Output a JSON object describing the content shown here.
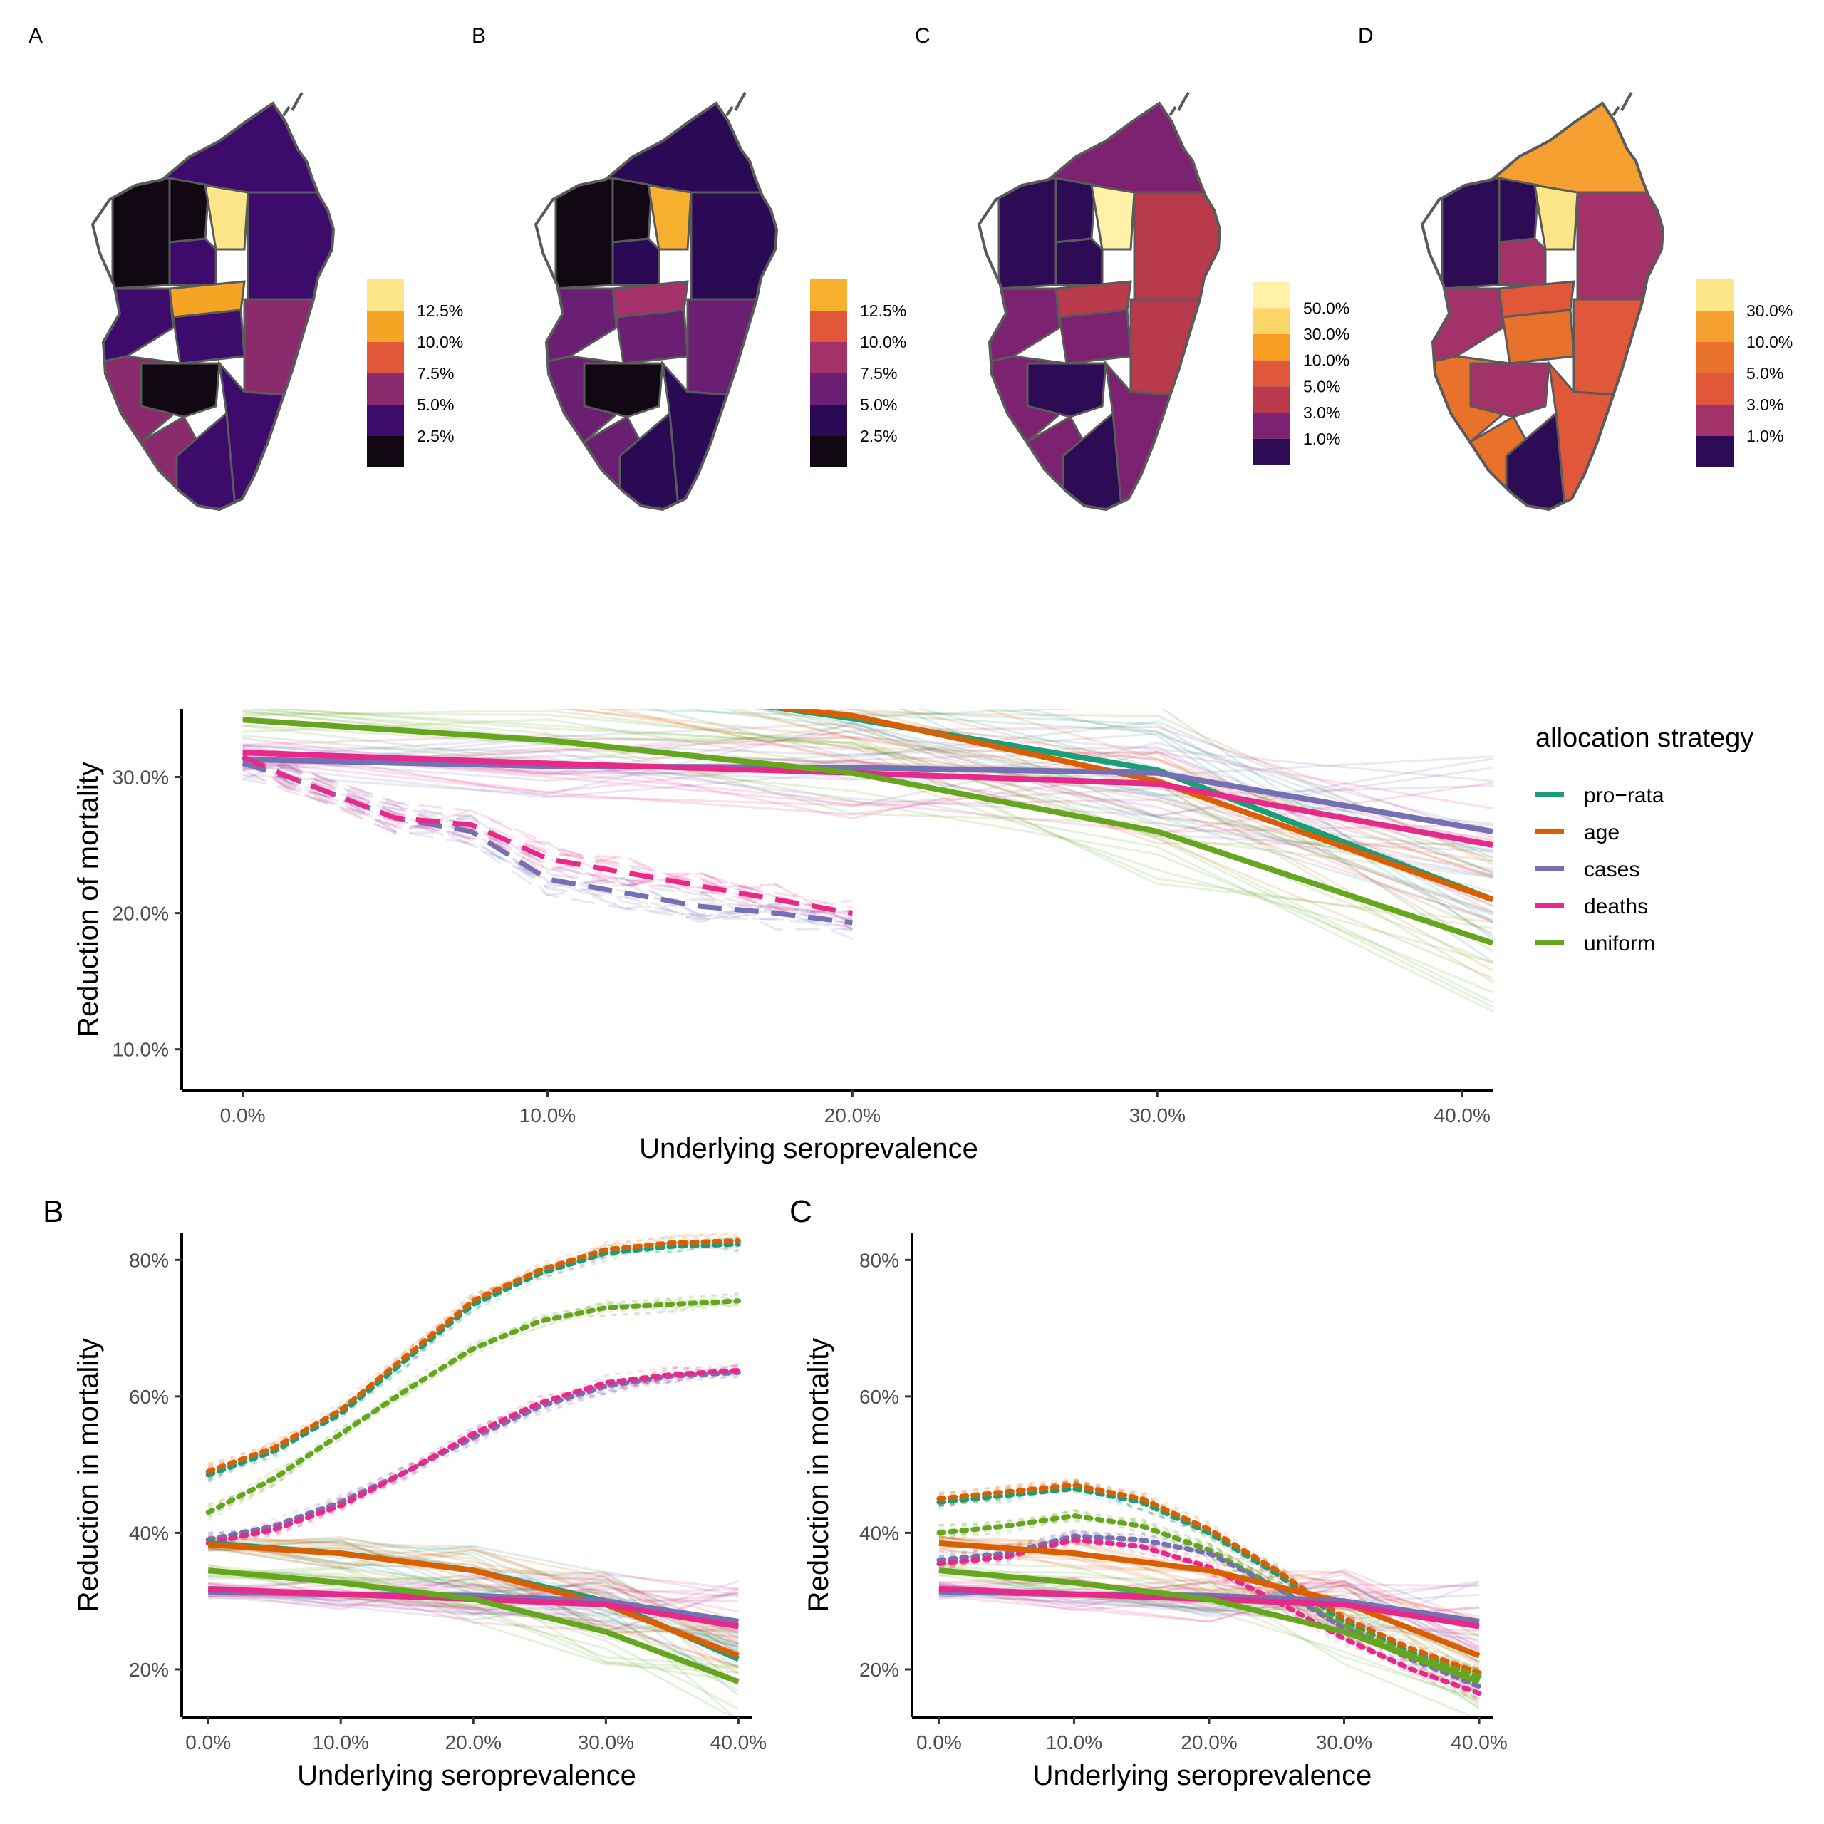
{
  "maps": [
    {
      "panel": "A",
      "palette": [
        "#fde68a",
        "#f5a523",
        "#e0573a",
        "#8c2a6e",
        "#3d0b6b",
        "#120814"
      ],
      "legend": [
        "12.5%",
        "10.0%",
        "7.5%",
        "5.0%",
        "2.5%"
      ]
    },
    {
      "panel": "B",
      "palette": [
        "#f7b12e",
        "#e0573a",
        "#a3316a",
        "#6b1f72",
        "#2a0a55",
        "#120814"
      ],
      "legend": [
        "12.5%",
        "10.0%",
        "7.5%",
        "5.0%",
        "2.5%"
      ]
    },
    {
      "panel": "C",
      "palette": [
        "#fff1a8",
        "#fcd56b",
        "#f89d22",
        "#e0573a",
        "#b83a4b",
        "#7d2270",
        "#2d0b55"
      ],
      "legend": [
        "50.0%",
        "30.0%",
        "10.0%",
        "5.0%",
        "3.0%",
        "1.0%"
      ]
    },
    {
      "panel": "D",
      "palette": [
        "#fde68a",
        "#f5a030",
        "#e8722b",
        "#e0573a",
        "#a3316a",
        "#2d0b55"
      ],
      "legend": [
        "30.0%",
        "10.0%",
        "5.0%",
        "3.0%",
        "1.0%"
      ]
    }
  ],
  "colors": {
    "pro-rata": "#1b9e77",
    "age": "#d95f02",
    "cases": "#7570b3",
    "deaths": "#e7298a",
    "uniform": "#66a61e"
  },
  "legend": {
    "title": "allocation strategy",
    "items": [
      "pro−rata",
      "age",
      "cases",
      "deaths",
      "uniform"
    ]
  },
  "chart_data": [
    {
      "panel": "",
      "type": "line",
      "xlabel": "Underlying seroprevalence",
      "ylabel": "Reduction of mortality",
      "xlim": [
        -0.02,
        0.41
      ],
      "ylim": [
        0.07,
        0.35
      ],
      "xticks": [
        "0.0%",
        "10.0%",
        "20.0%",
        "30.0%",
        "40.0%"
      ],
      "xtick_values": [
        0,
        0.1,
        0.2,
        0.3,
        0.4
      ],
      "yticks": [
        "10.0%",
        "20.0%",
        "30.0%"
      ],
      "ytick_values": [
        0.1,
        0.2,
        0.3
      ],
      "series": [
        {
          "name": "pro-rata",
          "style": "solid",
          "x": [
            0,
            0.1,
            0.2,
            0.3,
            0.41
          ],
          "y": [
            0.39,
            0.375,
            0.343,
            0.305,
            0.21
          ]
        },
        {
          "name": "age",
          "style": "solid",
          "x": [
            0,
            0.1,
            0.2,
            0.3,
            0.41
          ],
          "y": [
            0.385,
            0.37,
            0.345,
            0.297,
            0.21
          ]
        },
        {
          "name": "cases",
          "style": "solid",
          "x": [
            0,
            0.1,
            0.2,
            0.3,
            0.41
          ],
          "y": [
            0.313,
            0.308,
            0.307,
            0.303,
            0.26
          ]
        },
        {
          "name": "deaths",
          "style": "solid",
          "x": [
            0,
            0.1,
            0.2,
            0.3,
            0.41
          ],
          "y": [
            0.318,
            0.31,
            0.303,
            0.295,
            0.25
          ]
        },
        {
          "name": "uniform",
          "style": "solid",
          "x": [
            0,
            0.1,
            0.2,
            0.3,
            0.41
          ],
          "y": [
            0.342,
            0.327,
            0.303,
            0.26,
            0.178
          ]
        },
        {
          "name": "cases",
          "style": "dashed",
          "x": [
            0,
            0.015,
            0.05,
            0.075,
            0.1,
            0.125,
            0.15,
            0.175,
            0.2
          ],
          "y": [
            0.31,
            0.3,
            0.27,
            0.26,
            0.225,
            0.215,
            0.205,
            0.2,
            0.193
          ]
        },
        {
          "name": "deaths",
          "style": "dashed",
          "x": [
            0,
            0.015,
            0.05,
            0.075,
            0.1,
            0.125,
            0.15,
            0.175,
            0.2
          ],
          "y": [
            0.315,
            0.3,
            0.27,
            0.265,
            0.24,
            0.23,
            0.22,
            0.21,
            0.2
          ]
        }
      ]
    },
    {
      "panel": "B",
      "type": "line",
      "xlabel": "Underlying seroprevalence",
      "ylabel": "Reduction in mortality",
      "xlim": [
        -0.02,
        0.41
      ],
      "ylim": [
        0.13,
        0.84
      ],
      "xticks": [
        "0.0%",
        "10.0%",
        "20.0%",
        "30.0%",
        "40.0%"
      ],
      "xtick_values": [
        0,
        0.1,
        0.2,
        0.3,
        0.4
      ],
      "yticks": [
        "20%",
        "40%",
        "60%",
        "80%"
      ],
      "ytick_values": [
        0.2,
        0.4,
        0.6,
        0.8
      ],
      "series": [
        {
          "name": "pro-rata",
          "style": "dotted",
          "x": [
            0,
            0.05,
            0.1,
            0.15,
            0.2,
            0.25,
            0.3,
            0.35,
            0.4
          ],
          "y": [
            0.485,
            0.52,
            0.575,
            0.655,
            0.735,
            0.78,
            0.81,
            0.82,
            0.823
          ]
        },
        {
          "name": "age",
          "style": "dotted",
          "x": [
            0,
            0.05,
            0.1,
            0.15,
            0.2,
            0.25,
            0.3,
            0.35,
            0.4
          ],
          "y": [
            0.49,
            0.525,
            0.58,
            0.66,
            0.74,
            0.785,
            0.815,
            0.825,
            0.828
          ]
        },
        {
          "name": "uniform",
          "style": "dotted",
          "x": [
            0,
            0.05,
            0.1,
            0.15,
            0.2,
            0.25,
            0.3,
            0.35,
            0.4
          ],
          "y": [
            0.43,
            0.48,
            0.545,
            0.61,
            0.67,
            0.71,
            0.73,
            0.735,
            0.74
          ]
        },
        {
          "name": "cases",
          "style": "dotted",
          "x": [
            0,
            0.05,
            0.1,
            0.15,
            0.2,
            0.25,
            0.3,
            0.35,
            0.4
          ],
          "y": [
            0.39,
            0.41,
            0.445,
            0.49,
            0.54,
            0.585,
            0.615,
            0.63,
            0.635
          ]
        },
        {
          "name": "deaths",
          "style": "dotted",
          "x": [
            0,
            0.05,
            0.1,
            0.15,
            0.2,
            0.25,
            0.3,
            0.35,
            0.4
          ],
          "y": [
            0.385,
            0.405,
            0.44,
            0.49,
            0.545,
            0.59,
            0.62,
            0.632,
            0.638
          ]
        },
        {
          "name": "pro-rata",
          "style": "solid",
          "x": [
            0,
            0.1,
            0.2,
            0.3,
            0.4
          ],
          "y": [
            0.385,
            0.37,
            0.345,
            0.3,
            0.215
          ]
        },
        {
          "name": "age",
          "style": "solid",
          "x": [
            0,
            0.1,
            0.2,
            0.3,
            0.4
          ],
          "y": [
            0.383,
            0.37,
            0.345,
            0.295,
            0.22
          ]
        },
        {
          "name": "cases",
          "style": "solid",
          "x": [
            0,
            0.1,
            0.2,
            0.3,
            0.4
          ],
          "y": [
            0.314,
            0.31,
            0.308,
            0.3,
            0.27
          ]
        },
        {
          "name": "deaths",
          "style": "solid",
          "x": [
            0,
            0.1,
            0.2,
            0.3,
            0.4
          ],
          "y": [
            0.318,
            0.31,
            0.303,
            0.295,
            0.263
          ]
        },
        {
          "name": "uniform",
          "style": "solid",
          "x": [
            0,
            0.1,
            0.2,
            0.3,
            0.4
          ],
          "y": [
            0.345,
            0.327,
            0.303,
            0.255,
            0.182
          ]
        }
      ]
    },
    {
      "panel": "C",
      "type": "line",
      "xlabel": "Underlying seroprevalence",
      "ylabel": "Reduction in mortality",
      "xlim": [
        -0.02,
        0.41
      ],
      "ylim": [
        0.13,
        0.84
      ],
      "xticks": [
        "0.0%",
        "10.0%",
        "20.0%",
        "30.0%",
        "40.0%"
      ],
      "xtick_values": [
        0,
        0.1,
        0.2,
        0.3,
        0.4
      ],
      "yticks": [
        "20%",
        "40%",
        "60%",
        "80%"
      ],
      "ytick_values": [
        0.2,
        0.4,
        0.6,
        0.8
      ],
      "series": [
        {
          "name": "pro-rata",
          "style": "dotted",
          "x": [
            0,
            0.05,
            0.1,
            0.15,
            0.2,
            0.25,
            0.3,
            0.35,
            0.4
          ],
          "y": [
            0.445,
            0.455,
            0.465,
            0.445,
            0.4,
            0.34,
            0.27,
            0.225,
            0.19
          ]
        },
        {
          "name": "age",
          "style": "dotted",
          "x": [
            0,
            0.05,
            0.1,
            0.15,
            0.2,
            0.25,
            0.3,
            0.35,
            0.4
          ],
          "y": [
            0.45,
            0.46,
            0.47,
            0.45,
            0.405,
            0.345,
            0.275,
            0.23,
            0.195
          ]
        },
        {
          "name": "uniform",
          "style": "dotted",
          "x": [
            0,
            0.05,
            0.1,
            0.15,
            0.2,
            0.25,
            0.3,
            0.35,
            0.4
          ],
          "y": [
            0.4,
            0.41,
            0.425,
            0.41,
            0.375,
            0.32,
            0.265,
            0.22,
            0.19
          ]
        },
        {
          "name": "cases",
          "style": "dotted",
          "x": [
            0,
            0.05,
            0.1,
            0.15,
            0.2,
            0.25,
            0.3,
            0.35,
            0.4
          ],
          "y": [
            0.36,
            0.37,
            0.395,
            0.39,
            0.37,
            0.32,
            0.26,
            0.215,
            0.175
          ]
        },
        {
          "name": "deaths",
          "style": "dotted",
          "x": [
            0,
            0.05,
            0.1,
            0.15,
            0.2,
            0.25,
            0.3,
            0.35,
            0.4
          ],
          "y": [
            0.355,
            0.365,
            0.39,
            0.38,
            0.35,
            0.3,
            0.245,
            0.2,
            0.165
          ]
        },
        {
          "name": "age",
          "style": "solid",
          "x": [
            0,
            0.1,
            0.2,
            0.3,
            0.4
          ],
          "y": [
            0.385,
            0.37,
            0.345,
            0.298,
            0.22
          ]
        },
        {
          "name": "cases",
          "style": "solid",
          "x": [
            0,
            0.1,
            0.2,
            0.3,
            0.4
          ],
          "y": [
            0.314,
            0.31,
            0.308,
            0.3,
            0.27
          ]
        },
        {
          "name": "deaths",
          "style": "solid",
          "x": [
            0,
            0.1,
            0.2,
            0.3,
            0.4
          ],
          "y": [
            0.318,
            0.31,
            0.303,
            0.295,
            0.263
          ]
        },
        {
          "name": "uniform",
          "style": "solid",
          "x": [
            0,
            0.1,
            0.2,
            0.3,
            0.4
          ],
          "y": [
            0.345,
            0.327,
            0.303,
            0.255,
            0.182
          ]
        }
      ]
    }
  ]
}
